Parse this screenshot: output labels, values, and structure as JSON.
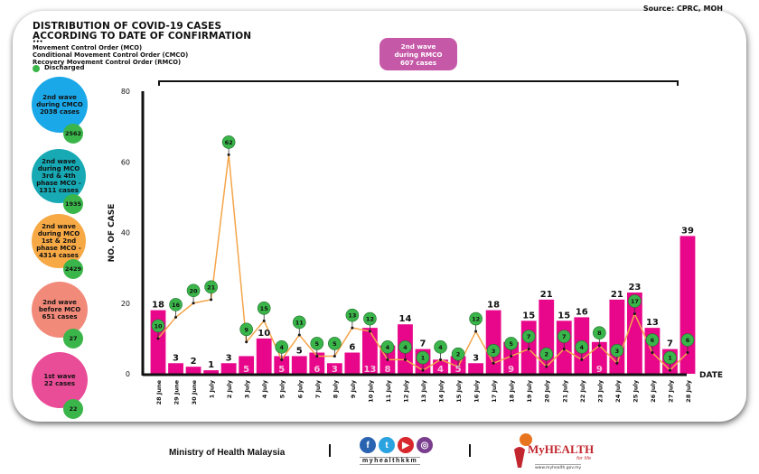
{
  "source": "Source: CPRC, MOH",
  "title_lines": [
    "DISTRIBUTION OF COVID-19 CASES",
    "ACCORDING TO DATE OF CONFIRMATION"
  ],
  "legend": {
    "mco": "Movement Control Order (MCO)",
    "cmco": "Conditional Movement Control Order (CMCO)",
    "rmco": "Recovery Movement Control Order (RMCO)",
    "discharged": "Discharged"
  },
  "waves": [
    {
      "lines": [
        "2nd wave",
        "during CMCO",
        "2038 cases"
      ],
      "discharged": "2562",
      "color": "#1ba8e8"
    },
    {
      "lines": [
        "2nd wave",
        "during MCO",
        "3rd & 4th",
        "phase MCO -",
        "1311 cases"
      ],
      "discharged": "1935",
      "color": "#17aab5"
    },
    {
      "lines": [
        "2nd wave",
        "during MCO",
        "1st & 2nd",
        "phase MCO -",
        "4314 cases"
      ],
      "discharged": "2429",
      "color": "#f7a945"
    },
    {
      "lines": [
        "2nd wave",
        "before MCO",
        "651 cases"
      ],
      "discharged": "27",
      "color": "#f28a7a"
    },
    {
      "lines": [
        "1st wave",
        "22 cases"
      ],
      "discharged": "22",
      "color": "#ea4d98"
    }
  ],
  "rmco_box": {
    "lines": [
      "2nd wave",
      "during RMCO",
      "607 cases"
    ]
  },
  "colors": {
    "bar": "#e8068a",
    "discharged": "#3ab54a",
    "line": "#f4a54a",
    "rmco": "#c559a8"
  },
  "chart_data": {
    "type": "bar",
    "title": "DISTRIBUTION OF COVID-19 CASES ACCORDING TO DATE OF CONFIRMATION",
    "xlabel": "DATE",
    "ylabel": "NO. OF CASE",
    "ylim": [
      0,
      80
    ],
    "yticks": [
      0,
      20,
      40,
      60,
      80
    ],
    "grid": false,
    "categories": [
      "28 June",
      "29 June",
      "30 June",
      "1 July",
      "2 July",
      "3 July",
      "4 July",
      "5 July",
      "6 July",
      "7 July",
      "8 July",
      "9 July",
      "10 July",
      "11 July",
      "12 July",
      "13 July",
      "14 July",
      "15 July",
      "16 July",
      "17 July",
      "18 July",
      "19 July",
      "20 July",
      "21 July",
      "22 July",
      "23 July",
      "24 July",
      "25 July",
      "26 July",
      "27 July",
      "28 July"
    ],
    "series": [
      {
        "name": "Cases",
        "type": "bar",
        "values": [
          18,
          3,
          2,
          1,
          3,
          5,
          10,
          5,
          5,
          6,
          3,
          6,
          13,
          8,
          14,
          7,
          4,
          5,
          3,
          18,
          9,
          15,
          21,
          15,
          16,
          9,
          21,
          23,
          13,
          7,
          39
        ]
      },
      {
        "name": "Discharged",
        "type": "line",
        "values": [
          10,
          16,
          20,
          21,
          62,
          9,
          15,
          4,
          11,
          5,
          5,
          13,
          12,
          4,
          4,
          1,
          4,
          2,
          12,
          3,
          5,
          7,
          2,
          7,
          4,
          8,
          3,
          17,
          6,
          1,
          6
        ]
      }
    ],
    "annotation": "2nd wave during RMCO 607 cases"
  },
  "footer": {
    "ministry": "Ministry of Health Malaysia",
    "social_handle": "myhealthkkm",
    "social_icons": [
      "facebook-icon",
      "twitter-icon",
      "youtube-icon",
      "instagram-icon"
    ],
    "brand": "MyHEALTH",
    "brand_tagline": "for life",
    "brand_url": "www.myhealth.gov.my"
  }
}
